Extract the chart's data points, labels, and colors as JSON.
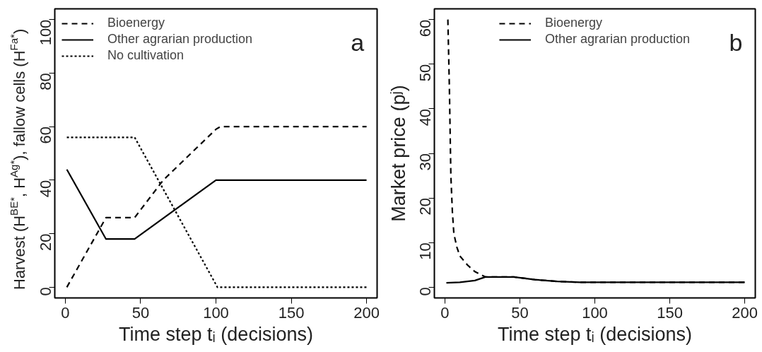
{
  "chart_data": [
    {
      "type": "line",
      "xlabel": "Time step tᵢ (decisions)",
      "ylabel": "Harvest (H$^{BE*}$, H$^{Ag*}$), fallow cells (H$^{Fa*}$)",
      "xlim": [
        -7,
        207
      ],
      "ylim": [
        -4,
        104
      ],
      "xticks": [
        0,
        50,
        100,
        150,
        200
      ],
      "yticks": [
        0,
        20,
        40,
        60,
        80,
        100
      ],
      "legend": "top left",
      "annotations": [
        "a"
      ],
      "series": [
        {
          "name": "Bioenergy",
          "color": "#000000",
          "line_style": "dashed",
          "x": [
            1,
            27,
            46,
            65,
            100,
            103,
            200
          ],
          "values": [
            0,
            26,
            26,
            40,
            59,
            60,
            60
          ]
        },
        {
          "name": "Other agrarian production",
          "color": "#000000",
          "line_style": "solid",
          "x": [
            1,
            27,
            46,
            100,
            200
          ],
          "values": [
            44,
            18,
            18,
            40,
            40
          ]
        },
        {
          "name": "No cultivation",
          "color": "#000000",
          "line_style": "dotted",
          "x": [
            1,
            46,
            101,
            200
          ],
          "values": [
            56,
            56,
            0,
            0
          ]
        }
      ]
    },
    {
      "type": "line",
      "xlabel": "Time step tᵢ (decisions)",
      "ylabel": "Market price (pʲ)",
      "xlim": [
        -7,
        207
      ],
      "ylim": [
        -2.4,
        62.4
      ],
      "xticks": [
        0,
        50,
        100,
        150,
        200
      ],
      "yticks": [
        0,
        10,
        20,
        30,
        40,
        50,
        60
      ],
      "legend": "top",
      "annotations": [
        "b"
      ],
      "series": [
        {
          "name": "Bioenergy",
          "color": "#000000",
          "line_style": "dashed",
          "x": [
            2,
            3,
            4,
            5,
            6,
            8,
            10,
            15,
            20,
            27,
            46,
            60,
            75,
            90,
            100,
            200
          ],
          "values": [
            60,
            45,
            25,
            17,
            12,
            9,
            7,
            5,
            3.5,
            2.3,
            2.3,
            1.7,
            1.3,
            1.1,
            1.1,
            1.1
          ]
        },
        {
          "name": "Other agrarian production",
          "color": "#000000",
          "line_style": "solid",
          "x": [
            1,
            10,
            20,
            27,
            46,
            60,
            75,
            90,
            100,
            200
          ],
          "values": [
            1,
            1.1,
            1.5,
            2.3,
            2.3,
            1.7,
            1.3,
            1.1,
            1.1,
            1.1
          ]
        }
      ]
    }
  ]
}
